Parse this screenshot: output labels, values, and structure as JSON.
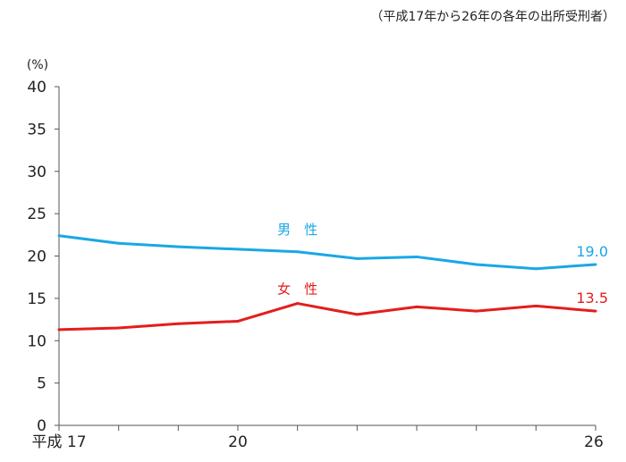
{
  "chart_data": {
    "type": "line",
    "note": "（平成17年から26年の各年の出所受刑者）",
    "ylabel": "(%)",
    "ylim": [
      0,
      40
    ],
    "yticks": [
      "0",
      "5",
      "10",
      "15",
      "20",
      "25",
      "30",
      "35",
      "40"
    ],
    "x": [
      17,
      18,
      19,
      20,
      21,
      22,
      23,
      24,
      25,
      26
    ],
    "xtick_labels": [
      {
        "x": 17,
        "text": "平成 17"
      },
      {
        "x": 20,
        "text": "20"
      },
      {
        "x": 26,
        "text": "26"
      }
    ],
    "series": [
      {
        "name": "男　性",
        "color": "#1aa7e6",
        "values": [
          22.4,
          21.5,
          21.1,
          20.8,
          20.5,
          19.7,
          19.9,
          19.0,
          18.5,
          19.0
        ],
        "end_label": "19.0"
      },
      {
        "name": "女　性",
        "color": "#e41d1d",
        "values": [
          11.3,
          11.5,
          12.0,
          12.3,
          14.4,
          13.1,
          14.0,
          13.5,
          14.1,
          13.5
        ],
        "end_label": "13.5"
      }
    ]
  }
}
